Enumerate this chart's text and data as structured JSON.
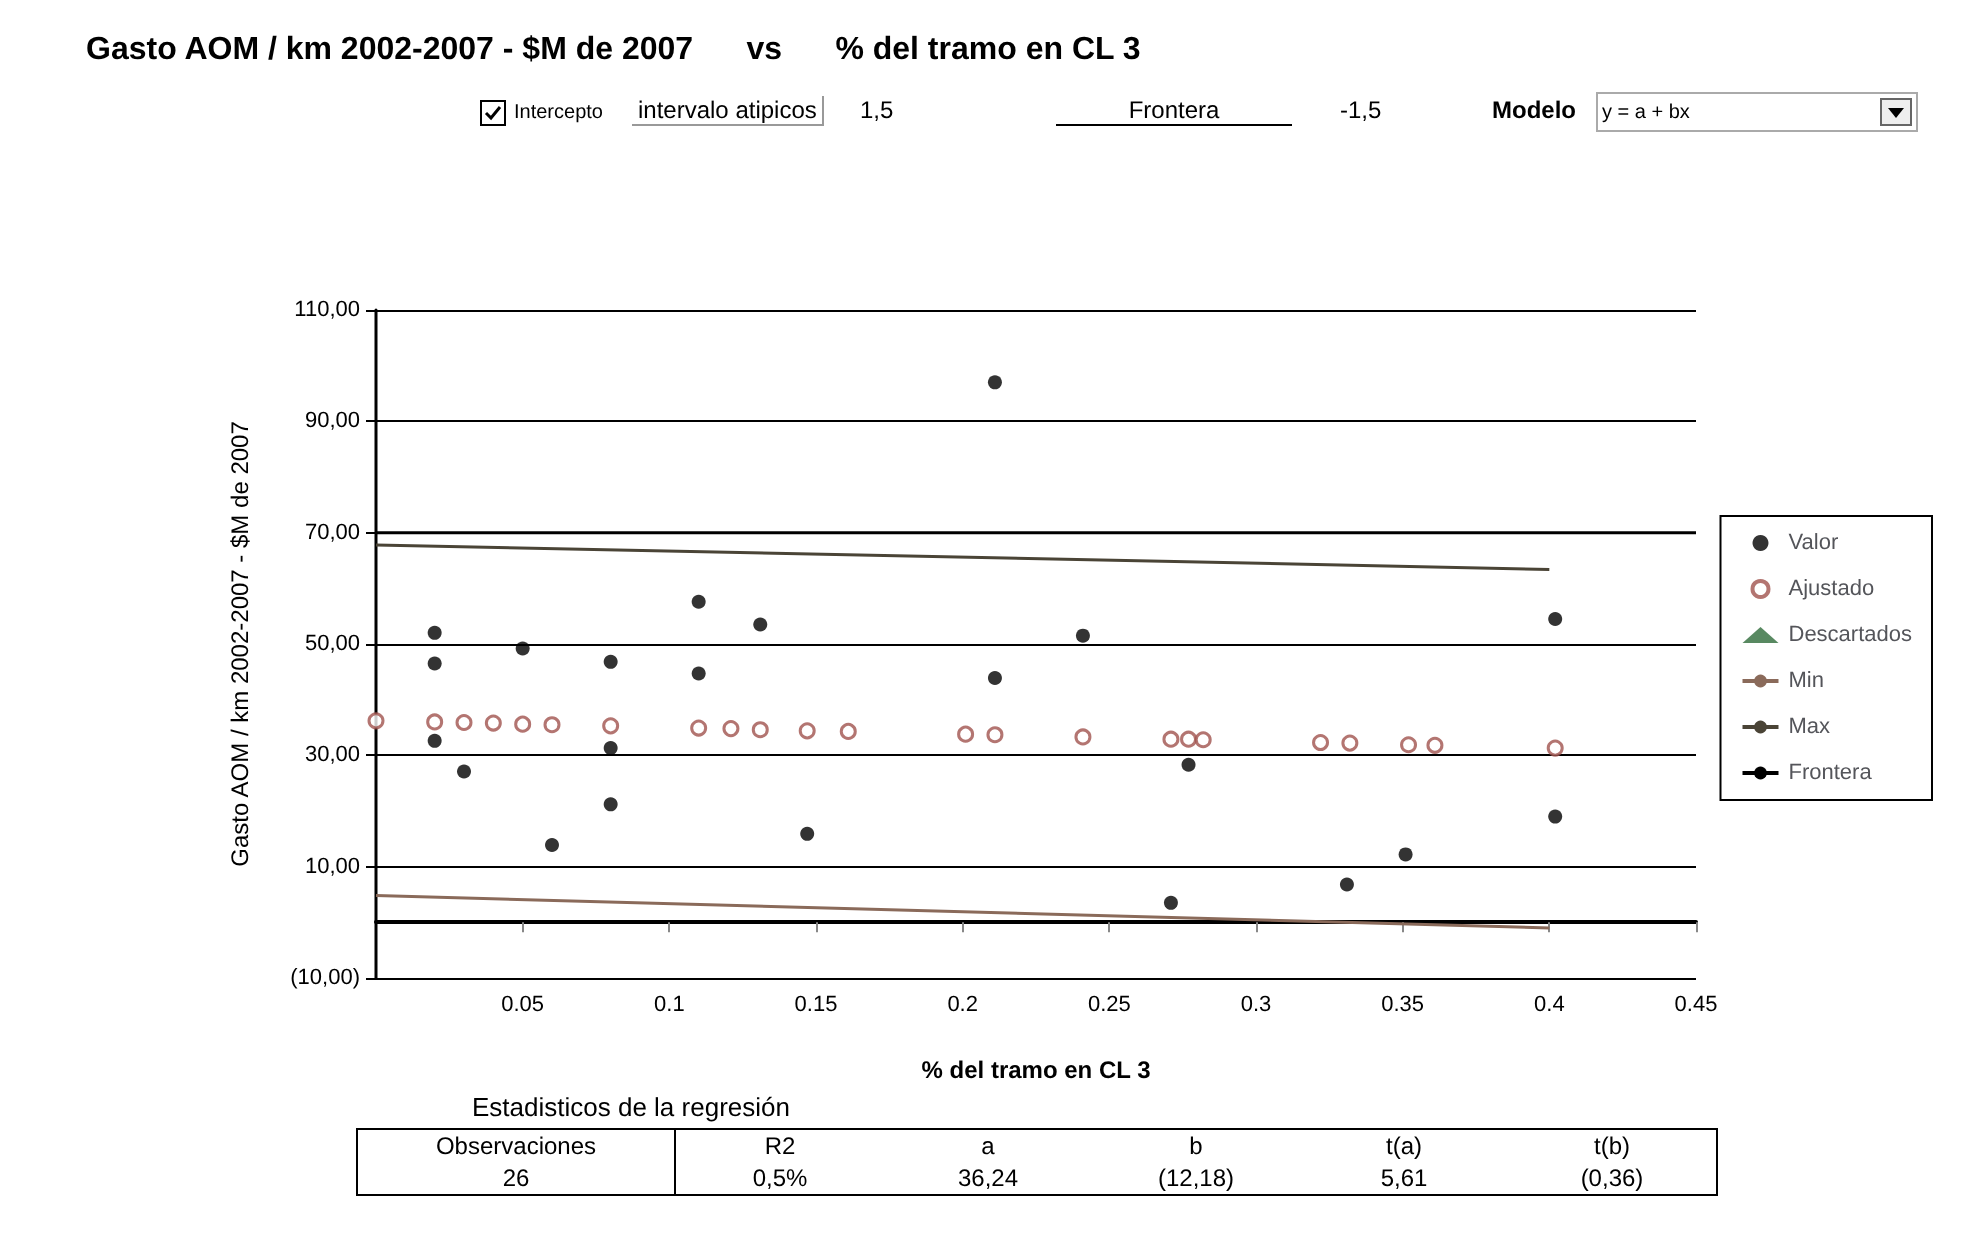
{
  "chart_data": {
    "type": "scatter",
    "title": "Gasto AOM / km 2002-2007 - $M de 2007      vs      % del tramo en CL 3",
    "xlabel": "% del tramo en CL 3",
    "ylabel": "Gasto AOM / km 2002-2007 - $M de 2007",
    "xlim": [
      0,
      0.45
    ],
    "xticks": [
      0.05,
      0.1,
      0.15,
      0.2,
      0.25,
      0.3,
      0.35,
      0.4,
      0.45
    ],
    "ylim": [
      -10,
      110
    ],
    "yticks": [
      {
        "value": -10,
        "label": "(10,00)"
      },
      {
        "value": 10,
        "label": "10,00"
      },
      {
        "value": 30,
        "label": "30,00"
      },
      {
        "value": 50,
        "label": "50,00"
      },
      {
        "value": 70,
        "label": "70,00"
      },
      {
        "value": 90,
        "label": "90,00"
      },
      {
        "value": 110,
        "label": "110,00"
      }
    ],
    "grid": "y",
    "legend": "right",
    "series": [
      {
        "name": "Valor",
        "marker": "circle",
        "color": "#000000",
        "x": [
          0.02,
          0.02,
          0.02,
          0.03,
          0.05,
          0.06,
          0.08,
          0.08,
          0.08,
          0.11,
          0.11,
          0.131,
          0.147,
          0.211,
          0.211,
          0.241,
          0.277,
          0.271,
          0.331,
          0.351,
          0.402,
          0.402
        ],
        "values": [
          52.0,
          46.5,
          32.6,
          27.1,
          49.2,
          13.9,
          46.8,
          31.3,
          21.2,
          57.6,
          44.7,
          53.5,
          15.9,
          97,
          43.9,
          51.5,
          28.3,
          3.5,
          6.8,
          12.2,
          54.5,
          19.0
        ]
      },
      {
        "name": "Ajustado",
        "marker": "circle",
        "color": "#a0524d",
        "x": [
          0.0,
          0.02,
          0.03,
          0.04,
          0.05,
          0.06,
          0.08,
          0.11,
          0.121,
          0.131,
          0.147,
          0.161,
          0.201,
          0.211,
          0.241,
          0.271,
          0.277,
          0.282,
          0.322,
          0.332,
          0.352,
          0.361,
          0.402
        ],
        "values": [
          36.2,
          36.0,
          35.9,
          35.8,
          35.6,
          35.5,
          35.3,
          34.9,
          34.8,
          34.6,
          34.4,
          34.3,
          33.8,
          33.7,
          33.3,
          32.9,
          32.9,
          32.8,
          32.3,
          32.2,
          31.9,
          31.8,
          31.3
        ]
      },
      {
        "name": "Descartados",
        "marker": "triangle",
        "color": "#2e6b3a"
      },
      {
        "name": "Min",
        "type": "line",
        "marker": "none",
        "color": "#8a6a5a",
        "x": [
          0.0,
          0.4
        ],
        "values": [
          4.8,
          -1.0
        ]
      },
      {
        "name": "Max",
        "type": "line",
        "marker": "none",
        "color": "#4a4436",
        "x": [
          0.0,
          0.4
        ],
        "values": [
          67.8,
          63.4
        ]
      },
      {
        "name": "Frontera",
        "type": "line",
        "marker": "none",
        "color": "#000000",
        "x": [
          0.0,
          0.45
        ],
        "values": [
          70,
          70
        ]
      }
    ],
    "annotations": [
      "Intercepto",
      "intervalo atipicos",
      "1,5",
      "Frontera",
      "-1,5",
      "Modelo",
      "y = a + bx",
      "Estadisticos de la regresión",
      "Observaciones",
      "R2",
      "a",
      "b",
      "t(a)",
      "t(b)",
      "26",
      "0,5%",
      "36,24",
      "(12,18)",
      "5,61",
      "(0,36)"
    ]
  }
}
